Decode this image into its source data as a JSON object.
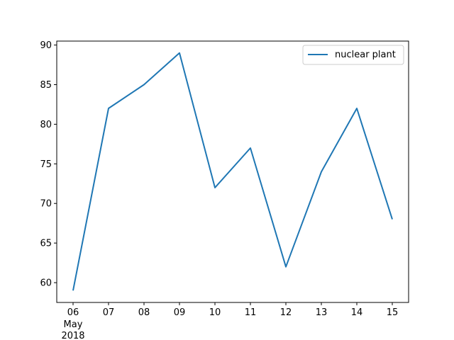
{
  "chart_data": {
    "type": "line",
    "title": "",
    "xlabel": "",
    "ylabel": "",
    "x": [
      "2018-05-06",
      "2018-05-07",
      "2018-05-08",
      "2018-05-09",
      "2018-05-10",
      "2018-05-11",
      "2018-05-12",
      "2018-05-13",
      "2018-05-14",
      "2018-05-15"
    ],
    "x_tick_labels": [
      "06",
      "07",
      "08",
      "09",
      "10",
      "11",
      "12",
      "13",
      "14",
      "15"
    ],
    "x_tick_sublabel": {
      "month": "May",
      "year": "2018"
    },
    "series": [
      {
        "name": "nuclear plant",
        "color": "#1f77b4",
        "values": [
          59,
          82,
          85,
          89,
          72,
          77,
          62,
          74,
          82,
          68
        ]
      }
    ],
    "ylim": [
      57.5,
      90.5
    ],
    "y_ticks": [
      60,
      65,
      70,
      75,
      80,
      85,
      90
    ],
    "grid": false,
    "legend": "top-right"
  }
}
